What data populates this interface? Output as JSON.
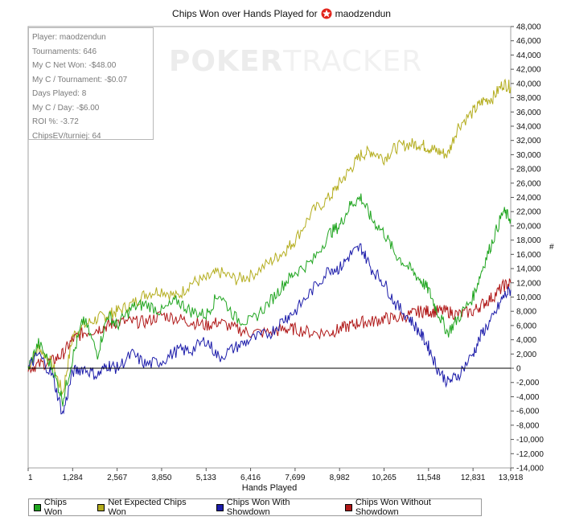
{
  "title": {
    "text": "Chips Won over Hands Played for",
    "player": "maodzendun",
    "logo_icon": "pokerstars-logo-icon"
  },
  "watermark": {
    "bold": "POKER",
    "light": "TRACKER"
  },
  "stats": [
    "Player: maodzendun",
    "Tournaments: 646",
    "My C Net Won: -$48.00",
    "My C / Tournament: -$0.07",
    "Days Played: 8",
    "My C / Day: -$6.00",
    "ROI %: -3.72",
    "ChipsEV/turniej: 64"
  ],
  "y_unit": "#",
  "legend": [
    {
      "label": "Chips Won",
      "color": "#1fa51f"
    },
    {
      "label": "Net Expected Chips Won",
      "color": "#b4ad1e"
    },
    {
      "label": "Chips Won With Showdown",
      "color": "#1c1caa"
    },
    {
      "label": "Chips Won Without Showdown",
      "color": "#b01818"
    }
  ],
  "chart_data": {
    "type": "line",
    "title": "Chips Won over Hands Played for maodzendun",
    "xlabel": "Hands Played",
    "ylabel": "#",
    "xlim": [
      1,
      13918
    ],
    "ylim": [
      -14000,
      48000
    ],
    "x_ticks": [
      1,
      1284,
      2567,
      3850,
      5133,
      6416,
      7699,
      8982,
      10265,
      11548,
      12831,
      13918
    ],
    "x_tick_labels": [
      "1",
      "1,284",
      "2,567",
      "3,850",
      "5,133",
      "6,416",
      "7,699",
      "8,982",
      "10,265",
      "11,548",
      "12,831",
      "13,918"
    ],
    "y_ticks": [
      -14000,
      -12000,
      -10000,
      -8000,
      -6000,
      -4000,
      -2000,
      0,
      2000,
      4000,
      6000,
      8000,
      10000,
      12000,
      14000,
      16000,
      18000,
      20000,
      22000,
      24000,
      26000,
      28000,
      30000,
      32000,
      34000,
      36000,
      38000,
      40000,
      42000,
      44000,
      46000,
      48000
    ],
    "y_tick_labels": [
      "-14,000",
      "-12,000",
      "-10,000",
      "-8,000",
      "-6,000",
      "-4,000",
      "-2,000",
      "0",
      "2,000",
      "4,000",
      "6,000",
      "8,000",
      "10,000",
      "12,000",
      "14,000",
      "16,000",
      "18,000",
      "20,000",
      "22,000",
      "24,000",
      "26,000",
      "28,000",
      "30,000",
      "32,000",
      "34,000",
      "36,000",
      "38,000",
      "40,000",
      "42,000",
      "44,000",
      "46,000",
      "48,000"
    ],
    "grid": false,
    "legend_position": "bottom",
    "series": [
      {
        "name": "Chips Won",
        "color": "#1fa51f",
        "x": [
          1,
          300,
          700,
          1000,
          1284,
          1600,
          2000,
          2300,
          2567,
          3000,
          3400,
          3850,
          4300,
          4700,
          5133,
          5500,
          6000,
          6416,
          7000,
          7400,
          7699,
          8200,
          8700,
          8982,
          9300,
          9600,
          9900,
          10265,
          10600,
          11000,
          11300,
          11548,
          11800,
          12100,
          12400,
          12831,
          13100,
          13400,
          13700,
          13918
        ],
        "y": [
          0,
          3500,
          0,
          -4500,
          1500,
          7000,
          2000,
          7500,
          6000,
          8500,
          9000,
          8000,
          9500,
          8000,
          7500,
          10500,
          7000,
          6500,
          9500,
          12000,
          13500,
          15000,
          19000,
          20000,
          23000,
          24000,
          21000,
          19000,
          16000,
          14000,
          12500,
          11000,
          8000,
          5000,
          7000,
          10000,
          14000,
          18000,
          22000,
          21000
        ]
      },
      {
        "name": "Net Expected Chips Won",
        "color": "#b4ad1e",
        "x": [
          1,
          300,
          700,
          1000,
          1284,
          1600,
          2000,
          2300,
          2567,
          3000,
          3400,
          3850,
          4300,
          4700,
          5133,
          5500,
          6000,
          6416,
          7000,
          7400,
          7699,
          8200,
          8700,
          8982,
          9300,
          9600,
          9900,
          10265,
          10600,
          11000,
          11300,
          11548,
          11800,
          12100,
          12400,
          12831,
          13100,
          13400,
          13700,
          13918
        ],
        "y": [
          0,
          3000,
          500,
          -3500,
          4500,
          6000,
          7000,
          7500,
          8000,
          9000,
          10500,
          11000,
          10000,
          12000,
          12500,
          13500,
          12500,
          13000,
          15000,
          16500,
          18000,
          22000,
          24000,
          26000,
          28000,
          30000,
          30500,
          29500,
          31000,
          31500,
          31500,
          31000,
          30500,
          30000,
          34000,
          36000,
          37500,
          38000,
          40000,
          39500
        ]
      },
      {
        "name": "Chips Won With Showdown",
        "color": "#1c1caa",
        "x": [
          1,
          300,
          700,
          1000,
          1284,
          1600,
          2000,
          2300,
          2567,
          3000,
          3400,
          3850,
          4300,
          4700,
          5133,
          5500,
          6000,
          6416,
          7000,
          7400,
          7699,
          8200,
          8700,
          8982,
          9300,
          9600,
          9900,
          10265,
          10600,
          11000,
          11300,
          11548,
          11800,
          12100,
          12400,
          12831,
          13100,
          13400,
          13700,
          13918
        ],
        "y": [
          0,
          2000,
          -1000,
          -6500,
          -500,
          0,
          -1000,
          500,
          0,
          2000,
          500,
          1000,
          2500,
          2500,
          4000,
          1500,
          3000,
          4000,
          5000,
          7000,
          8000,
          11000,
          14000,
          14000,
          16000,
          17000,
          14000,
          12000,
          9000,
          7000,
          5000,
          3000,
          0,
          -2000,
          -1000,
          2000,
          5000,
          7000,
          10000,
          11000
        ]
      },
      {
        "name": "Chips Won Without Showdown",
        "color": "#b01818",
        "x": [
          1,
          300,
          700,
          1000,
          1284,
          1600,
          2000,
          2300,
          2567,
          3000,
          3400,
          3850,
          4300,
          4700,
          5133,
          5500,
          6000,
          6416,
          7000,
          7400,
          7699,
          8200,
          8700,
          8982,
          9300,
          9600,
          9900,
          10265,
          10600,
          11000,
          11300,
          11548,
          11800,
          12100,
          12400,
          12831,
          13100,
          13400,
          13700,
          13918
        ],
        "y": [
          0,
          500,
          1000,
          2000,
          4000,
          5000,
          5500,
          6000,
          6500,
          6500,
          6500,
          7500,
          7000,
          6500,
          6000,
          6500,
          5500,
          5000,
          5000,
          5500,
          5500,
          5000,
          5000,
          5500,
          6000,
          6500,
          6500,
          7000,
          7000,
          7500,
          8000,
          8000,
          8000,
          8000,
          7500,
          8000,
          9000,
          10000,
          11500,
          12000
        ]
      }
    ]
  }
}
